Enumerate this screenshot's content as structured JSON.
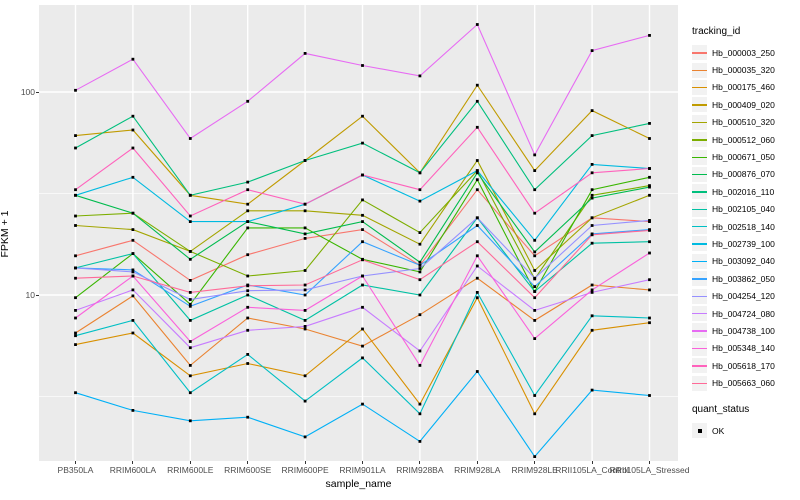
{
  "y_axis": {
    "title": "FPKM + 1",
    "tick_labels": [
      "100",
      "10"
    ],
    "tick_values": [
      100,
      10
    ]
  },
  "x_axis": {
    "title": "sample_name"
  },
  "legend": {
    "tracking_title": "tracking_id",
    "quant_title": "quant_status",
    "quant_items": [
      {
        "label": "OK",
        "marker": "black-square"
      }
    ]
  },
  "chart_data": {
    "type": "line",
    "title": "",
    "xlabel": "sample_name",
    "ylabel": "FPKM + 1",
    "y_scale": "log10",
    "ylim": [
      1.5,
      265
    ],
    "y_ticks": [
      10,
      100
    ],
    "y_minor_gridlines": [
      3.16,
      31.6
    ],
    "grid": true,
    "panel_background": "#EBEBEB",
    "gridline_color": "#FFFFFF",
    "point_shape": "square",
    "point_color": "#000000",
    "legend_position": "right",
    "categories": [
      "PB350LA",
      "RRIM600LA",
      "RRIM600LE",
      "RRIM600SE",
      "RRIM600PE",
      "RRIM901LA",
      "RRIM928BA",
      "RRIM928LA",
      "RRIM928LE",
      "RRII105LA_Control",
      "RRII105LA_Stressed"
    ],
    "series": [
      {
        "name": "Hb_000003_250",
        "color": "#F8766D",
        "values": [
          15.6,
          18.6,
          11.8,
          15.8,
          19,
          21,
          14,
          33,
          15.6,
          24,
          23
        ]
      },
      {
        "name": "Hb_000035_320",
        "color": "#EA8331",
        "values": [
          6.5,
          9.9,
          4.5,
          7.7,
          6.8,
          5.6,
          8.0,
          12.1,
          7.5,
          11.2,
          10.6
        ]
      },
      {
        "name": "Hb_000175_460",
        "color": "#D89000",
        "values": [
          5.7,
          6.5,
          4.0,
          4.6,
          4.0,
          6.8,
          2.9,
          9.7,
          2.6,
          6.7,
          7.3
        ]
      },
      {
        "name": "Hb_000409_020",
        "color": "#C09B00",
        "values": [
          61,
          65,
          31,
          28,
          46,
          76,
          40,
          108,
          41,
          81,
          59
        ]
      },
      {
        "name": "Hb_000510_320",
        "color": "#A3A500",
        "values": [
          22,
          21,
          16.4,
          26,
          26,
          24.7,
          17.8,
          46,
          13.2,
          24,
          31
        ]
      },
      {
        "name": "Hb_000512_060",
        "color": "#7CAE00",
        "values": [
          24.5,
          25.3,
          16.4,
          12.4,
          13.2,
          29.4,
          20.3,
          41,
          12,
          31,
          34.6
        ]
      },
      {
        "name": "Hb_000671_050",
        "color": "#39B600",
        "values": [
          9.7,
          16,
          9,
          21.4,
          21.4,
          15,
          13,
          37,
          10.4,
          33,
          38
        ]
      },
      {
        "name": "Hb_000876_070",
        "color": "#00BB4E",
        "values": [
          31,
          25.3,
          15,
          23,
          20,
          23,
          14.5,
          40,
          16.3,
          30,
          34
        ]
      },
      {
        "name": "Hb_002016_110",
        "color": "#00BF7D",
        "values": [
          53,
          76,
          31,
          36,
          46,
          56,
          40,
          90,
          33,
          61,
          70
        ]
      },
      {
        "name": "Hb_002105_040",
        "color": "#00C1A3",
        "values": [
          13.6,
          16,
          7.5,
          10,
          7.5,
          11.2,
          10,
          24,
          10.4,
          18,
          18.3
        ]
      },
      {
        "name": "Hb_002518_140",
        "color": "#00BFC4",
        "values": [
          6.3,
          7.5,
          3.3,
          5.1,
          3.0,
          4.9,
          2.6,
          10.3,
          3.2,
          7.9,
          7.7
        ]
      },
      {
        "name": "Hb_002739_100",
        "color": "#00BAE0",
        "values": [
          31,
          38,
          23,
          23,
          28,
          39,
          29,
          41,
          18.6,
          44,
          42
        ]
      },
      {
        "name": "Hb_003092_040",
        "color": "#00B0F6",
        "values": [
          3.3,
          2.7,
          2.4,
          2.5,
          2.0,
          2.9,
          1.9,
          4.2,
          1.6,
          3.4,
          3.2
        ]
      },
      {
        "name": "Hb_003862_050",
        "color": "#35A2FF",
        "values": [
          13.6,
          13.3,
          8.8,
          11.2,
          10,
          18.3,
          14,
          22,
          11,
          20,
          21
        ]
      },
      {
        "name": "Hb_004254_120",
        "color": "#9590FF",
        "values": [
          13.6,
          13,
          9.5,
          10.5,
          10.6,
          12.4,
          13.5,
          24,
          12.1,
          22,
          23.3
        ]
      },
      {
        "name": "Hb_004724_080",
        "color": "#C77CFF",
        "values": [
          8.4,
          10.6,
          5.5,
          6.7,
          7.0,
          8.7,
          5.3,
          13.9,
          8.4,
          10.3,
          11.9
        ]
      },
      {
        "name": "Hb_004738_100",
        "color": "#E76BF3",
        "values": [
          102,
          145,
          59,
          90,
          155,
          135,
          120,
          215,
          49,
          160,
          190
        ]
      },
      {
        "name": "Hb_005348_140",
        "color": "#FA62DB",
        "values": [
          7.7,
          12.4,
          5.9,
          8.7,
          8.4,
          12.4,
          4.5,
          15.6,
          6.1,
          10.6,
          16.1
        ]
      },
      {
        "name": "Hb_005618_170",
        "color": "#FF62BC",
        "values": [
          33,
          53,
          24.5,
          33,
          28,
          39,
          33,
          67,
          25.3,
          40,
          42
        ]
      },
      {
        "name": "Hb_005663_060",
        "color": "#FF6A98",
        "values": [
          12.1,
          12.4,
          10.3,
          11.1,
          11.2,
          14.9,
          11.9,
          18.3,
          9.7,
          19.8,
          20.8
        ]
      }
    ]
  }
}
